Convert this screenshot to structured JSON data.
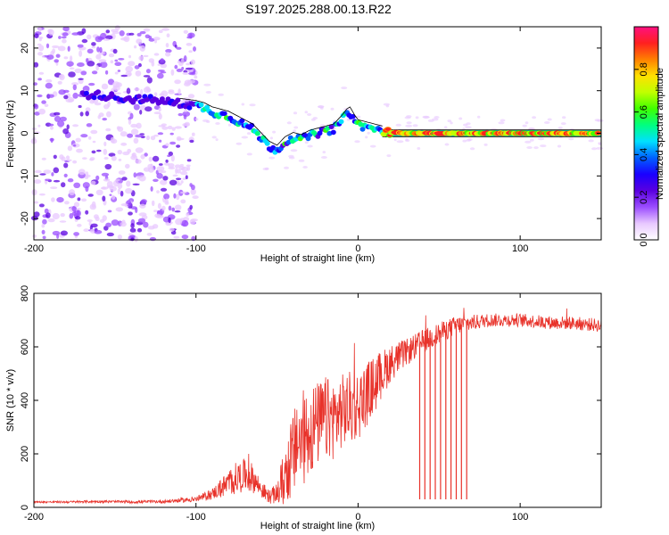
{
  "title": "S197.2025.288.00.13.R22",
  "chart_data": [
    {
      "type": "heatmap",
      "xlabel": "Height of straight line (km)",
      "ylabel": "Frequency (Hz)",
      "xlim": [
        -200,
        150
      ],
      "ylim": [
        -25,
        25
      ],
      "xticks": [
        -200,
        -100,
        0,
        100
      ],
      "xtick_labels": [
        "-200",
        "-100",
        "0",
        "100"
      ],
      "yticks": [
        -20,
        -10,
        0,
        10,
        20
      ],
      "ytick_labels": [
        "-20",
        "-10",
        "0",
        "10",
        "20"
      ],
      "colorbar": {
        "label": "Normalized spectral amplitude",
        "range": [
          0,
          1
        ],
        "ticks": [
          0,
          0.2,
          0.4,
          0.6,
          0.8
        ],
        "tick_labels": [
          "0.0",
          "0.2",
          "0.4",
          "0.6",
          "0.8"
        ],
        "colors": [
          "#ffffff",
          "#e8c8ff",
          "#9b4dff",
          "#5a00e0",
          "#1a00ff",
          "#0060ff",
          "#00e0ff",
          "#00ff80",
          "#40ff00",
          "#c0ff00",
          "#ffe000",
          "#ff8000",
          "#ff2020",
          "#ff1080"
        ]
      },
      "ridge": {
        "x": [
          -170,
          -160,
          -150,
          -140,
          -130,
          -120,
          -110,
          -100,
          -95,
          -90,
          -85,
          -80,
          -75,
          -70,
          -65,
          -60,
          -55,
          -50,
          -45,
          -40,
          -35,
          -30,
          -25,
          -20,
          -15,
          -10,
          -7,
          -5,
          -2,
          0,
          5,
          10,
          15,
          20,
          30,
          50,
          80,
          120,
          150
        ],
        "y": [
          9,
          9,
          8.5,
          8,
          8,
          7.5,
          7,
          6.5,
          6,
          5,
          4.5,
          4,
          3,
          2,
          1,
          -1,
          -3,
          -4,
          -2,
          -1,
          -1.5,
          -0.5,
          0,
          0.5,
          1,
          3,
          4.5,
          5,
          3,
          2,
          1.5,
          1,
          0.5,
          0.2,
          0,
          0,
          0,
          0,
          0
        ]
      }
    },
    {
      "type": "line",
      "xlabel": "Height of straight line (km)",
      "ylabel": "SNR (10 * v/v)",
      "xlim": [
        -200,
        150
      ],
      "ylim": [
        0,
        800
      ],
      "xticks": [
        -200,
        -100,
        0,
        100
      ],
      "xtick_labels": [
        "-200",
        "-100",
        "0",
        "100"
      ],
      "yticks": [
        0,
        200,
        400,
        600,
        800
      ],
      "ytick_labels": [
        "0",
        "200",
        "400",
        "600",
        "800"
      ],
      "color": "#e8322a",
      "series": [
        {
          "name": "SNR",
          "x": [
            -200,
            -180,
            -160,
            -140,
            -120,
            -100,
            -90,
            -85,
            -80,
            -75,
            -70,
            -65,
            -60,
            -55,
            -50,
            -45,
            -40,
            -35,
            -30,
            -25,
            -20,
            -15,
            -10,
            -5,
            0,
            5,
            10,
            15,
            20,
            30,
            40,
            50,
            60,
            70,
            80,
            90,
            100,
            110,
            120,
            130,
            140,
            150
          ],
          "values": [
            20,
            20,
            22,
            20,
            22,
            30,
            50,
            70,
            90,
            110,
            120,
            110,
            70,
            40,
            50,
            120,
            200,
            250,
            290,
            310,
            330,
            330,
            360,
            370,
            380,
            420,
            460,
            500,
            540,
            580,
            620,
            650,
            680,
            690,
            700,
            700,
            700,
            695,
            690,
            690,
            685,
            680
          ],
          "noise": [
            3,
            4,
            5,
            5,
            6,
            10,
            20,
            35,
            50,
            60,
            60,
            55,
            35,
            25,
            40,
            120,
            160,
            180,
            180,
            160,
            160,
            150,
            140,
            140,
            130,
            120,
            110,
            90,
            70,
            50,
            45,
            40,
            35,
            30,
            25,
            25,
            25,
            25,
            25,
            25,
            25,
            25
          ]
        }
      ],
      "dropouts": {
        "x_range": [
          38,
          67
        ],
        "count": 10,
        "min_value": 30
      }
    }
  ]
}
